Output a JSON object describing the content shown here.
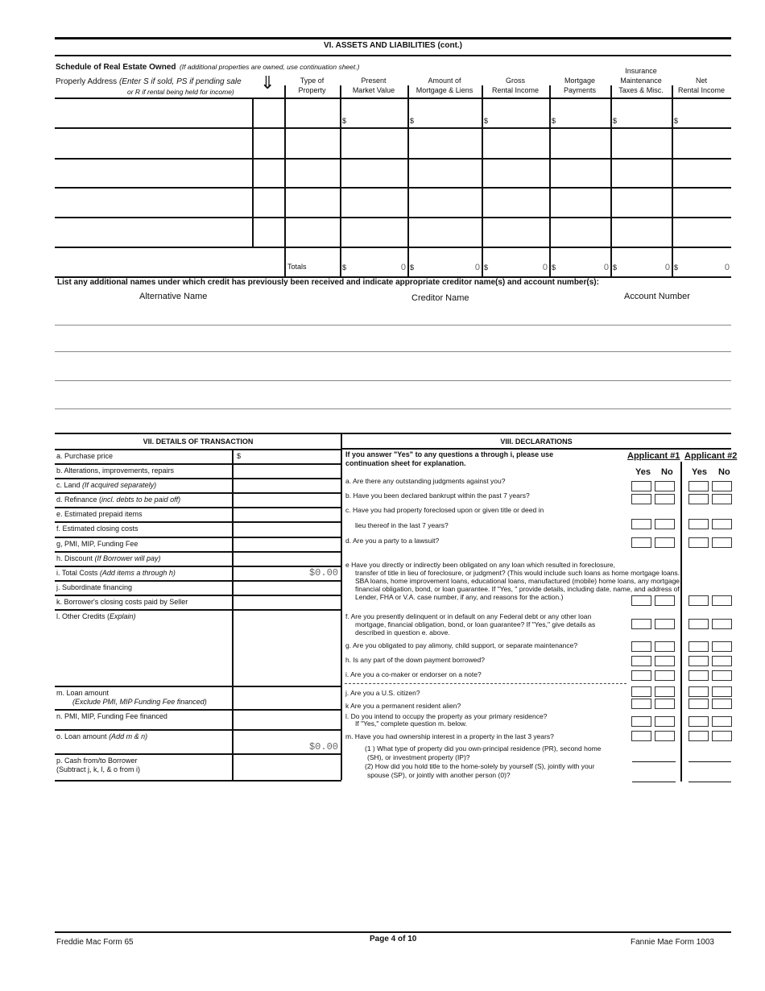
{
  "section6": {
    "title": "VI. ASSETS AND LIABILITIES (cont.)",
    "schedule_title": "Schedule of Real Estate Owned",
    "schedule_note": "(If additional properties are owned, use continuation sheet.)",
    "address_label": "Properly Address",
    "address_note1": "(Enter S if sold, PS if pending sale",
    "address_note2": "or R if rental being held for income)",
    "arrow_icon": "down-arrow-icon",
    "columns": [
      {
        "line1": "Type of",
        "line2": "Property"
      },
      {
        "line1": "Present",
        "line2": "Market Value"
      },
      {
        "line1": "Amount of",
        "line2": "Mortgage & Liens"
      },
      {
        "line1": "Gross",
        "line2": "Rental Income"
      },
      {
        "line1": "Mortgage",
        "line2": "Payments"
      },
      {
        "line1": "Insurance",
        "line2": "Maintenance",
        "line3": "Taxes & Misc."
      },
      {
        "line1": "Net",
        "line2": "Rental Income"
      }
    ],
    "currency": "$",
    "totals_label": "Totals",
    "totals": [
      "0",
      "0",
      "0",
      "0",
      "0",
      "0"
    ],
    "alt_names_prompt": "List any additional names under which credit has previously been received and indicate appropriate creditor name(s) and account number(s):",
    "alt_name_label": "Alternative Name",
    "creditor_label": "Creditor Name",
    "account_label": "Account Number"
  },
  "section7": {
    "title": "VII. DETAILS OF TRANSACTION",
    "rows": [
      {
        "label": "a. Purchase price",
        "value": "$"
      },
      {
        "label": "b. Alterations, improvements, repairs",
        "value": ""
      },
      {
        "label": "c. Land ",
        "note": "(If acquired separately)",
        "value": ""
      },
      {
        "label": "d. Refinance (",
        "note": "incl. debts to be paid off)",
        "value": ""
      },
      {
        "label": "e. Estimated prepaid items",
        "value": ""
      },
      {
        "label": "f. Estimated closing costs",
        "value": ""
      },
      {
        "label": "g, PMI, MIP, Funding Fee",
        "value": ""
      },
      {
        "label": "h. Discount ",
        "note": "(If Borrower will pay)",
        "value": ""
      },
      {
        "label": "i. Total Costs ",
        "note": "(Add items a through h)",
        "value": "$0.00"
      },
      {
        "label": "j. Subordinate financing",
        "value": ""
      },
      {
        "label": "k. Borrower's closing costs paid by Seller",
        "value": ""
      },
      {
        "label": "l.  Other Credits (",
        "note": "Explain)",
        "value": ""
      },
      {
        "label": "m. Loan amount",
        "label2": "(Exclude PMI, MIP Funding Fee financed)",
        "value": ""
      },
      {
        "label": "n. PMI, MIP, Funding Fee financed",
        "value": ""
      },
      {
        "label": "o. Loan amount ",
        "note": "(Add m & n)",
        "value": "$0.00"
      },
      {
        "label": "p. Cash from/to Borrower",
        "label2": "(Subtract j, k, l, & o from i)",
        "value": ""
      }
    ]
  },
  "section8": {
    "title": "VIII. DECLARATIONS",
    "intro": "If you answer \"Yes\" to any questions a through i, please use continuation sheet for explanation.",
    "applicant1": "Applicant #1",
    "applicant2": "Applicant #2",
    "yes": "Yes",
    "no": "No",
    "questions": [
      "a. Are there any outstanding judgments against you?",
      "b. Have you been declared bankrupt within the past 7 years?",
      "c. Have you had property foreclosed upon or given title or deed in",
      "lieu thereof in the last 7 years?",
      "d. Are you a party to a lawsuit?",
      "e Have you directly or indirectly been obligated on any loan  which resulted in foreclosure,",
      "transfer of title in lieu of foreclosure, or judgment? (This would include such loans as home mortgage loans.",
      "SBA loans, home improvement loans, educational loans, manufactured (mobile) home loans, any mortgage,",
      "financial obligation, bond, or loan guarantee. If \"Yes, \" provide details, including date, name, and address of",
      "Lender, FHA or V.A. case number, if any, and reasons for the action.)",
      "f. Are you presently delinquent or in default on any Federal debt or any other loan",
      "mortgage, financial obligation, bond, or loan guarantee? If \"Yes,\" give details as",
      "described in question e.  above.",
      "g. Are you obligated to pay alimony, child support, or separate maintenance?",
      "h. Is any part of  the down payment borrowed?",
      "i. Are you a co-maker or endorser on a note?",
      "j.  Are you a U.S. citizen?",
      "k  Are you a permanent resident alien?",
      "l.  Do you intend to occupy the property as your primary residence?",
      "If \"Yes,\" complete question m. below.",
      "m. Have you had ownership interest in a property in the last 3 years?",
      "(1 ) What type of property did you own-principal residence (PR), second home",
      "(SH), or investment property (IP)?",
      "(2) How did you hold title to the home-solely by yourself (S), jointly with your",
      "spouse (SP), or jointly with another person (0)?"
    ]
  },
  "footer": {
    "left": "Freddie Mac Form 65",
    "center": "Page 4 of 10",
    "right": "Fannie Mae Form 1003"
  }
}
